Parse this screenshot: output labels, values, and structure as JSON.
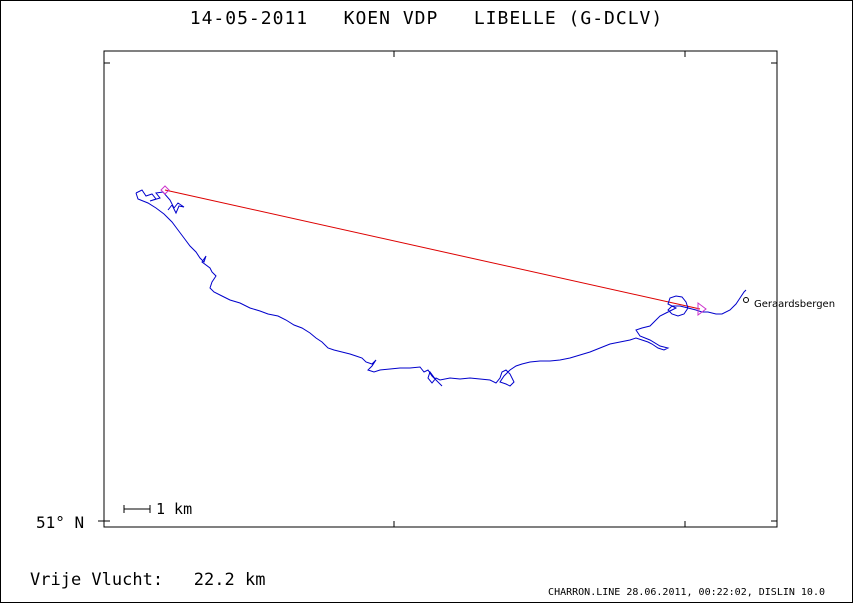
{
  "header": {
    "title": "14-05-2011   KOEN VDP   LIBELLE (G-DCLV)"
  },
  "map": {
    "latitude_label": "51° N",
    "scale_label": "1 km",
    "town_label": "Geraardsbergen",
    "colors": {
      "track": "#0000cc",
      "straight_line": "#dd0000",
      "marker": "#cc33cc",
      "frame": "#000000"
    }
  },
  "flight": {
    "distance_label": "Vrije Vlucht:",
    "distance_value": "22.2 km"
  },
  "footer": {
    "credit": "CHARRON.LINE 28.06.2011, 00:22:02, DISLIN 10.0"
  }
}
